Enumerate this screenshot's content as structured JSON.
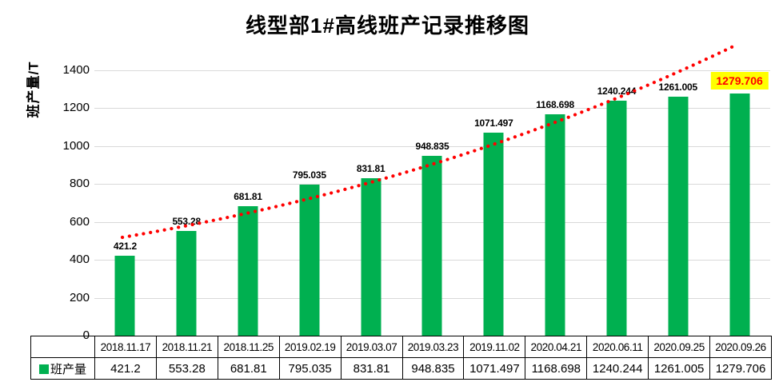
{
  "title": "线型部1#高线班产记录推移图",
  "chart_data": {
    "type": "bar",
    "title": "线型部1#高线班产记录推移图",
    "ylabel": "班产量/T",
    "xlabel": "",
    "categories": [
      "2018.11.17",
      "2018.11.21",
      "2018.11.25",
      "2019.02.19",
      "2019.03.07",
      "2019.03.23",
      "2019.11.02",
      "2020.04.21",
      "2020.06.11",
      "2020.09.25",
      "2020.09.26"
    ],
    "series": [
      {
        "name": "班产量",
        "values": [
          421.2,
          553.28,
          681.81,
          795.035,
          831.81,
          948.835,
          1071.497,
          1168.698,
          1240.244,
          1261.005,
          1279.706
        ]
      }
    ],
    "value_labels": [
      "421.2",
      "553.28",
      "681.81",
      "795.035",
      "831.81",
      "948.835",
      "1071.497",
      "1168.698",
      "1240.244",
      "1261.005",
      "1279.706"
    ],
    "yticks": [
      0,
      200,
      400,
      600,
      800,
      1000,
      1200,
      1400
    ],
    "ylim": [
      0,
      1518
    ],
    "grid": "horizontal",
    "legend_position": "table-left",
    "colors": {
      "bar": "#00B050",
      "trendline": "#FF0000",
      "gridline": "#D9D9D9",
      "highlight_label_text": "#FF0000",
      "highlight_label_background": "#FFFF00",
      "label_text": "#000000"
    },
    "trendline": {
      "style": "dotted",
      "shape": "upward-curve",
      "color": "#FF0000"
    },
    "legend": {
      "label": "班产量"
    }
  },
  "table": {
    "legend_label": "班产量"
  }
}
